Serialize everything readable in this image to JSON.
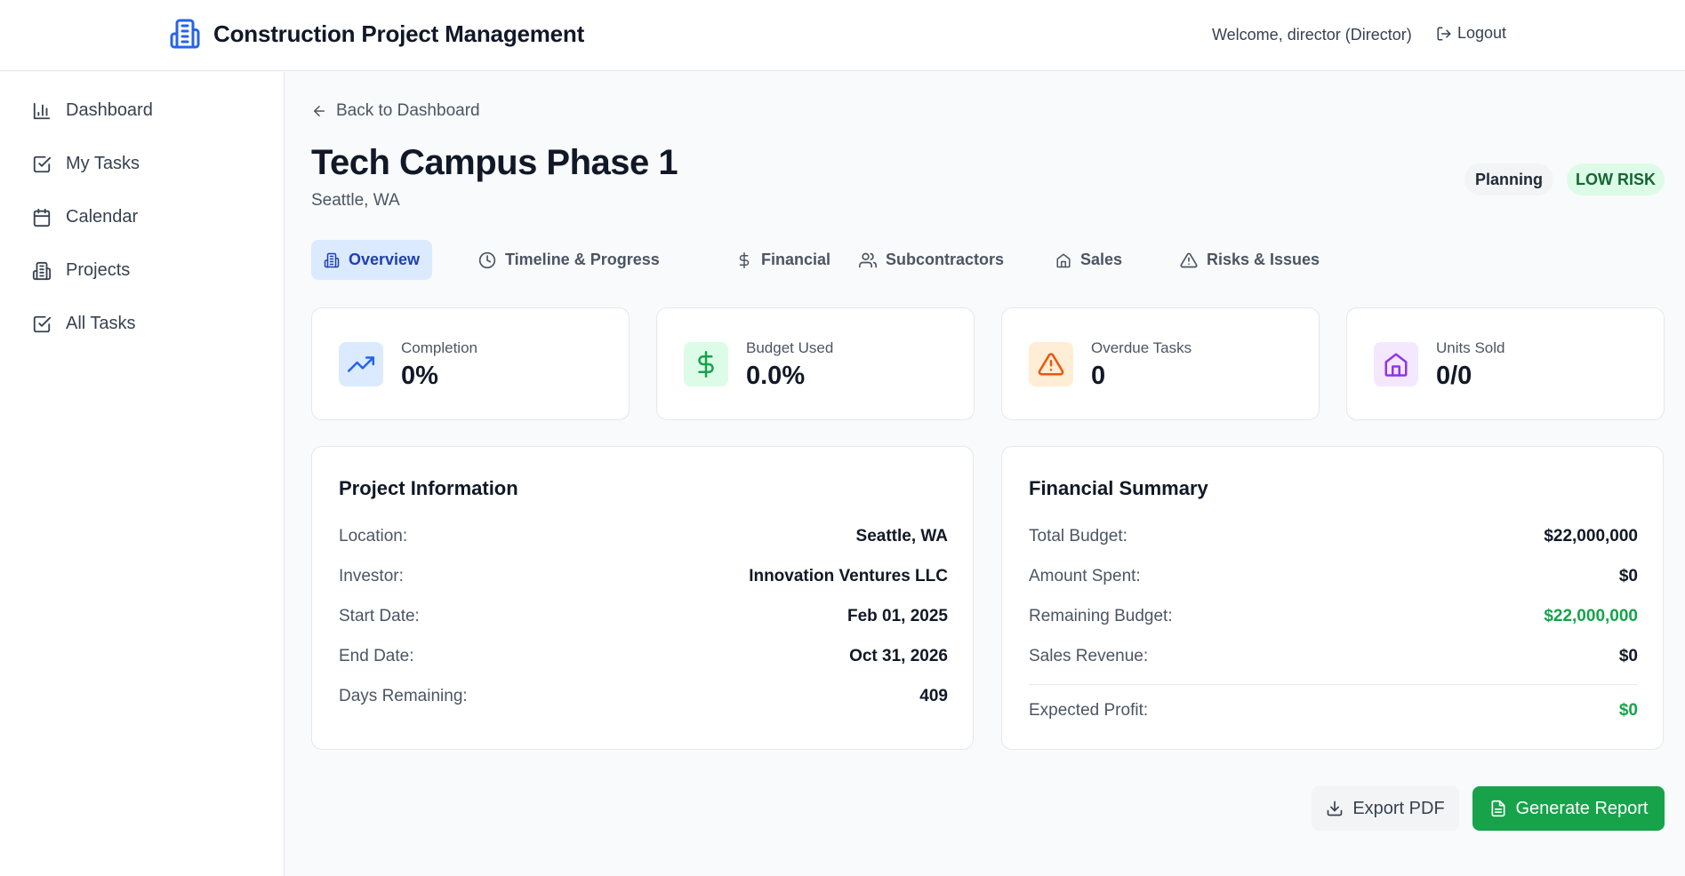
{
  "header": {
    "app_title": "Construction Project Management",
    "welcome": "Welcome, director (Director)",
    "logout_label": "Logout"
  },
  "sidebar": {
    "items": [
      {
        "label": "Dashboard",
        "icon": "bar-chart-icon"
      },
      {
        "label": "My Tasks",
        "icon": "check-square-icon"
      },
      {
        "label": "Calendar",
        "icon": "calendar-icon"
      },
      {
        "label": "Projects",
        "icon": "building-icon"
      },
      {
        "label": "All Tasks",
        "icon": "check-square-icon"
      }
    ]
  },
  "page": {
    "back_label": "Back to Dashboard",
    "title": "Tech Campus Phase 1",
    "subtitle": "Seattle, WA",
    "status_badge": "Planning",
    "risk_badge": "LOW RISK"
  },
  "tabs": [
    {
      "label": "Overview",
      "icon": "building-icon",
      "active": true
    },
    {
      "label": "Timeline & Progress",
      "icon": "clock-icon",
      "active": false
    },
    {
      "label": "Financial",
      "icon": "dollar-icon",
      "active": false
    },
    {
      "label": "Subcontractors",
      "icon": "users-icon",
      "active": false
    },
    {
      "label": "Sales",
      "icon": "home-icon",
      "active": false
    },
    {
      "label": "Risks & Issues",
      "icon": "warning-icon",
      "active": false
    }
  ],
  "stats": [
    {
      "label": "Completion",
      "value": "0%",
      "icon": "trending-up-icon",
      "color": "#2563eb",
      "bg": "#dbeafe"
    },
    {
      "label": "Budget Used",
      "value": "0.0%",
      "icon": "dollar-icon",
      "color": "#16a34a",
      "bg": "#dcfce7"
    },
    {
      "label": "Overdue Tasks",
      "value": "0",
      "icon": "warning-icon",
      "color": "#ea580c",
      "bg": "#ffedd5"
    },
    {
      "label": "Units Sold",
      "value": "0/0",
      "icon": "home-icon",
      "color": "#9333ea",
      "bg": "#f3e8ff"
    }
  ],
  "project_info": {
    "title": "Project Information",
    "rows": [
      {
        "label": "Location:",
        "value": "Seattle, WA"
      },
      {
        "label": "Investor:",
        "value": "Innovation Ventures LLC"
      },
      {
        "label": "Start Date:",
        "value": "Feb 01, 2025"
      },
      {
        "label": "End Date:",
        "value": "Oct 31, 2026"
      },
      {
        "label": "Days Remaining:",
        "value": "409"
      }
    ]
  },
  "financial_summary": {
    "title": "Financial Summary",
    "rows": [
      {
        "label": "Total Budget:",
        "value": "$22,000,000"
      },
      {
        "label": "Amount Spent:",
        "value": "$0"
      },
      {
        "label": "Remaining Budget:",
        "value": "$22,000,000"
      },
      {
        "label": "Sales Revenue:",
        "value": "$0"
      }
    ],
    "profit": {
      "label": "Expected Profit:",
      "value": "$0"
    }
  },
  "actions": {
    "export_label": "Export PDF",
    "report_label": "Generate Report"
  },
  "colors": {
    "accent": "#2563eb",
    "success": "#16a34a"
  }
}
